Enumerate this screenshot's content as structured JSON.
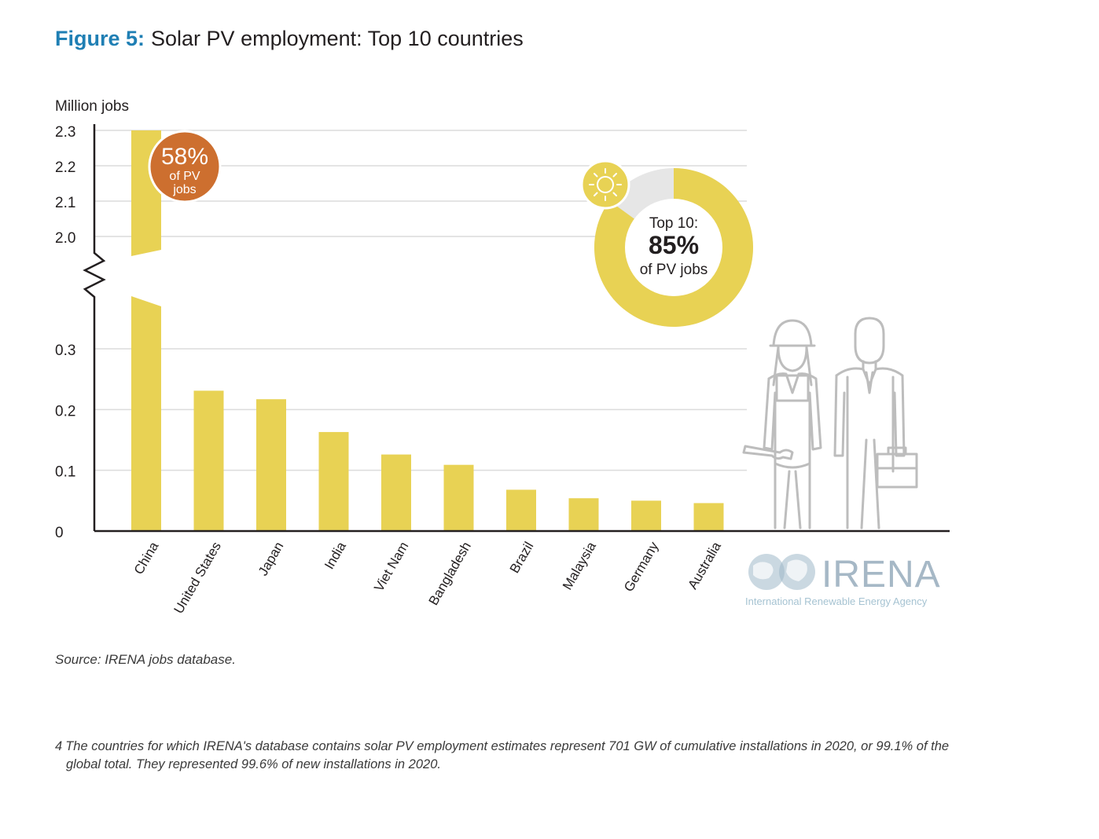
{
  "figure": {
    "label": "Figure 5:",
    "title": "Solar PV employment: Top 10 countries"
  },
  "colors": {
    "bar": "#e8d254",
    "callout": "#cd6f2f",
    "title_accent": "#1f7fb4",
    "gridline": "#dcdcdc",
    "donut_rest": "#e6e6e6",
    "figure_outline": "#bdbdbd",
    "logo": "#9fb8c8"
  },
  "chart_data": {
    "type": "bar",
    "ylabel": "Million jobs",
    "y_axis_break": true,
    "lower_range": [
      0,
      0.3
    ],
    "upper_range": [
      2.0,
      2.3
    ],
    "lower_ticks": [
      "0",
      "0.1",
      "0.2",
      "0.3"
    ],
    "upper_ticks": [
      "2.0",
      "2.1",
      "2.2",
      "2.3"
    ],
    "grid": true,
    "categories": [
      "China",
      "United States",
      "Japan",
      "India",
      "Viet Nam",
      "Bangladesh",
      "Brazil",
      "Malaysia",
      "Germany",
      "Australia"
    ],
    "values": [
      2.3,
      0.231,
      0.217,
      0.163,
      0.126,
      0.109,
      0.068,
      0.054,
      0.05,
      0.046
    ]
  },
  "callout": {
    "value": "58%",
    "line1": "of PV",
    "line2": "jobs"
  },
  "donut": {
    "share": 85,
    "line1": "Top 10:",
    "value": "85%",
    "line2": "of PV jobs",
    "icon": "sun-icon"
  },
  "logo": {
    "name": "IRENA",
    "subtitle": "International Renewable Energy Agency"
  },
  "source": "Source: IRENA jobs database.",
  "footnote": {
    "number": "4",
    "text": "The countries for which IRENA's database contains solar PV employment estimates represent 701 GW of cumulative installations in 2020, or 99.1% of the",
    "text2": "global total. They represented 99.6% of new installations in 2020."
  }
}
